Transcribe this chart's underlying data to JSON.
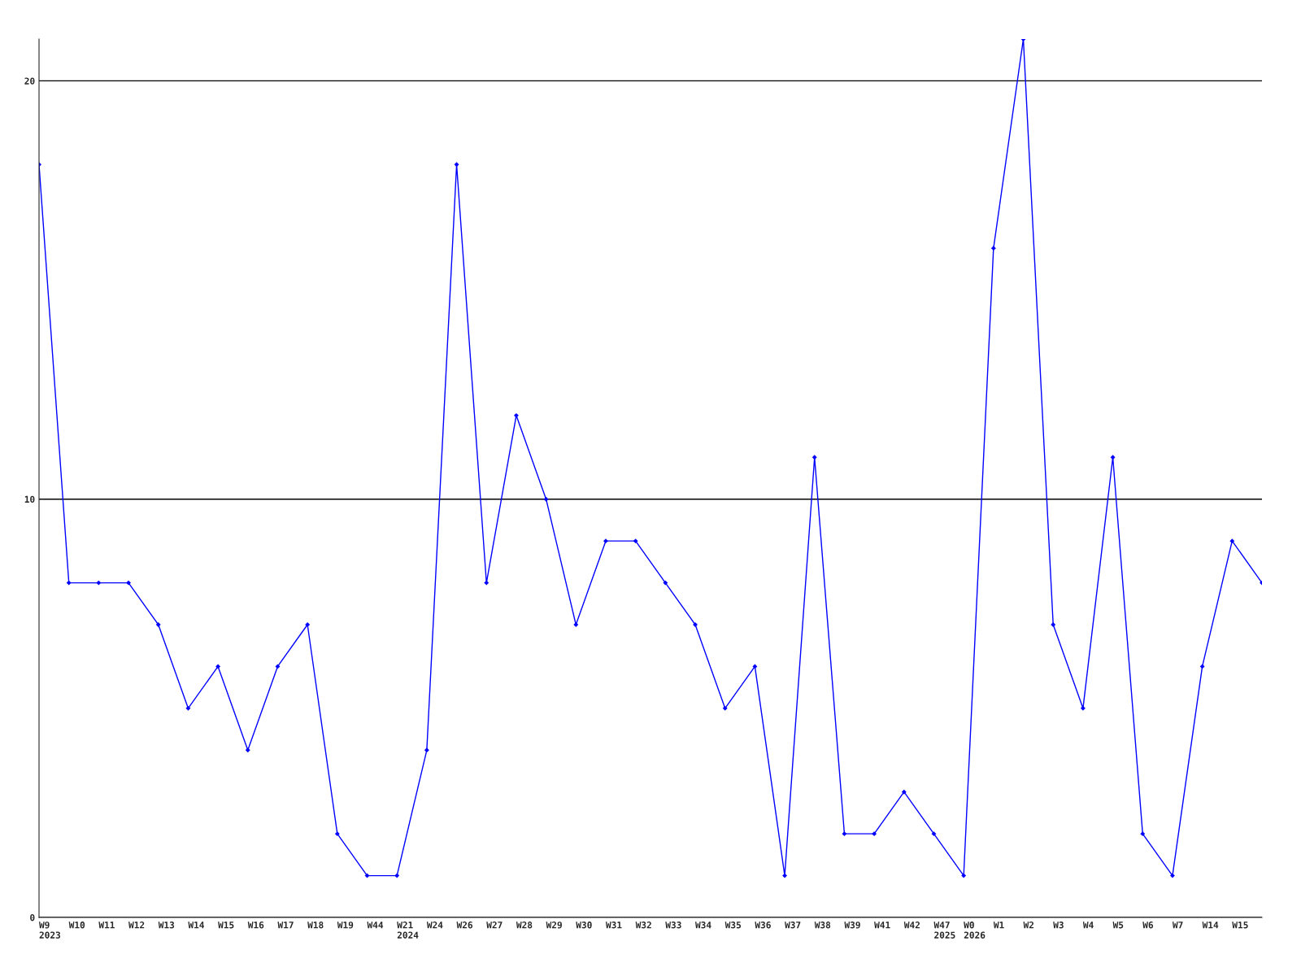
{
  "chart_data": {
    "type": "line",
    "categories": [
      "W9\n2023",
      "W10",
      "W11",
      "W12",
      "W13",
      "W14",
      "W15",
      "W16",
      "W17",
      "W18",
      "W19",
      "W44",
      "W21\n2024",
      "W24",
      "W26",
      "W27",
      "W28",
      "W29",
      "W30",
      "W31",
      "W32",
      "W33",
      "W34",
      "W35",
      "W36",
      "W37",
      "W38",
      "W39",
      "W41",
      "W42",
      "W47\n2025",
      "W0\n2026",
      "W1",
      "W2",
      "W3",
      "W4",
      "W5",
      "W6",
      "W7",
      "W14",
      "W15",
      null
    ],
    "series": [
      {
        "color": "#0000ff",
        "values": [
          18,
          8,
          8,
          8,
          7,
          5,
          6,
          4,
          6,
          7,
          2,
          1,
          1,
          4,
          18,
          8,
          12,
          10,
          7,
          9,
          9,
          8,
          7,
          5,
          6,
          1,
          11,
          2,
          2,
          3,
          2,
          1,
          16,
          21,
          7,
          5,
          11,
          2,
          1,
          6,
          9,
          8
        ]
      }
    ],
    "ylim": [
      0,
      21
    ],
    "yticks": [
      0,
      10,
      20
    ],
    "grid": "y",
    "marker": "diamond",
    "line_style": "solid",
    "legend": false
  }
}
